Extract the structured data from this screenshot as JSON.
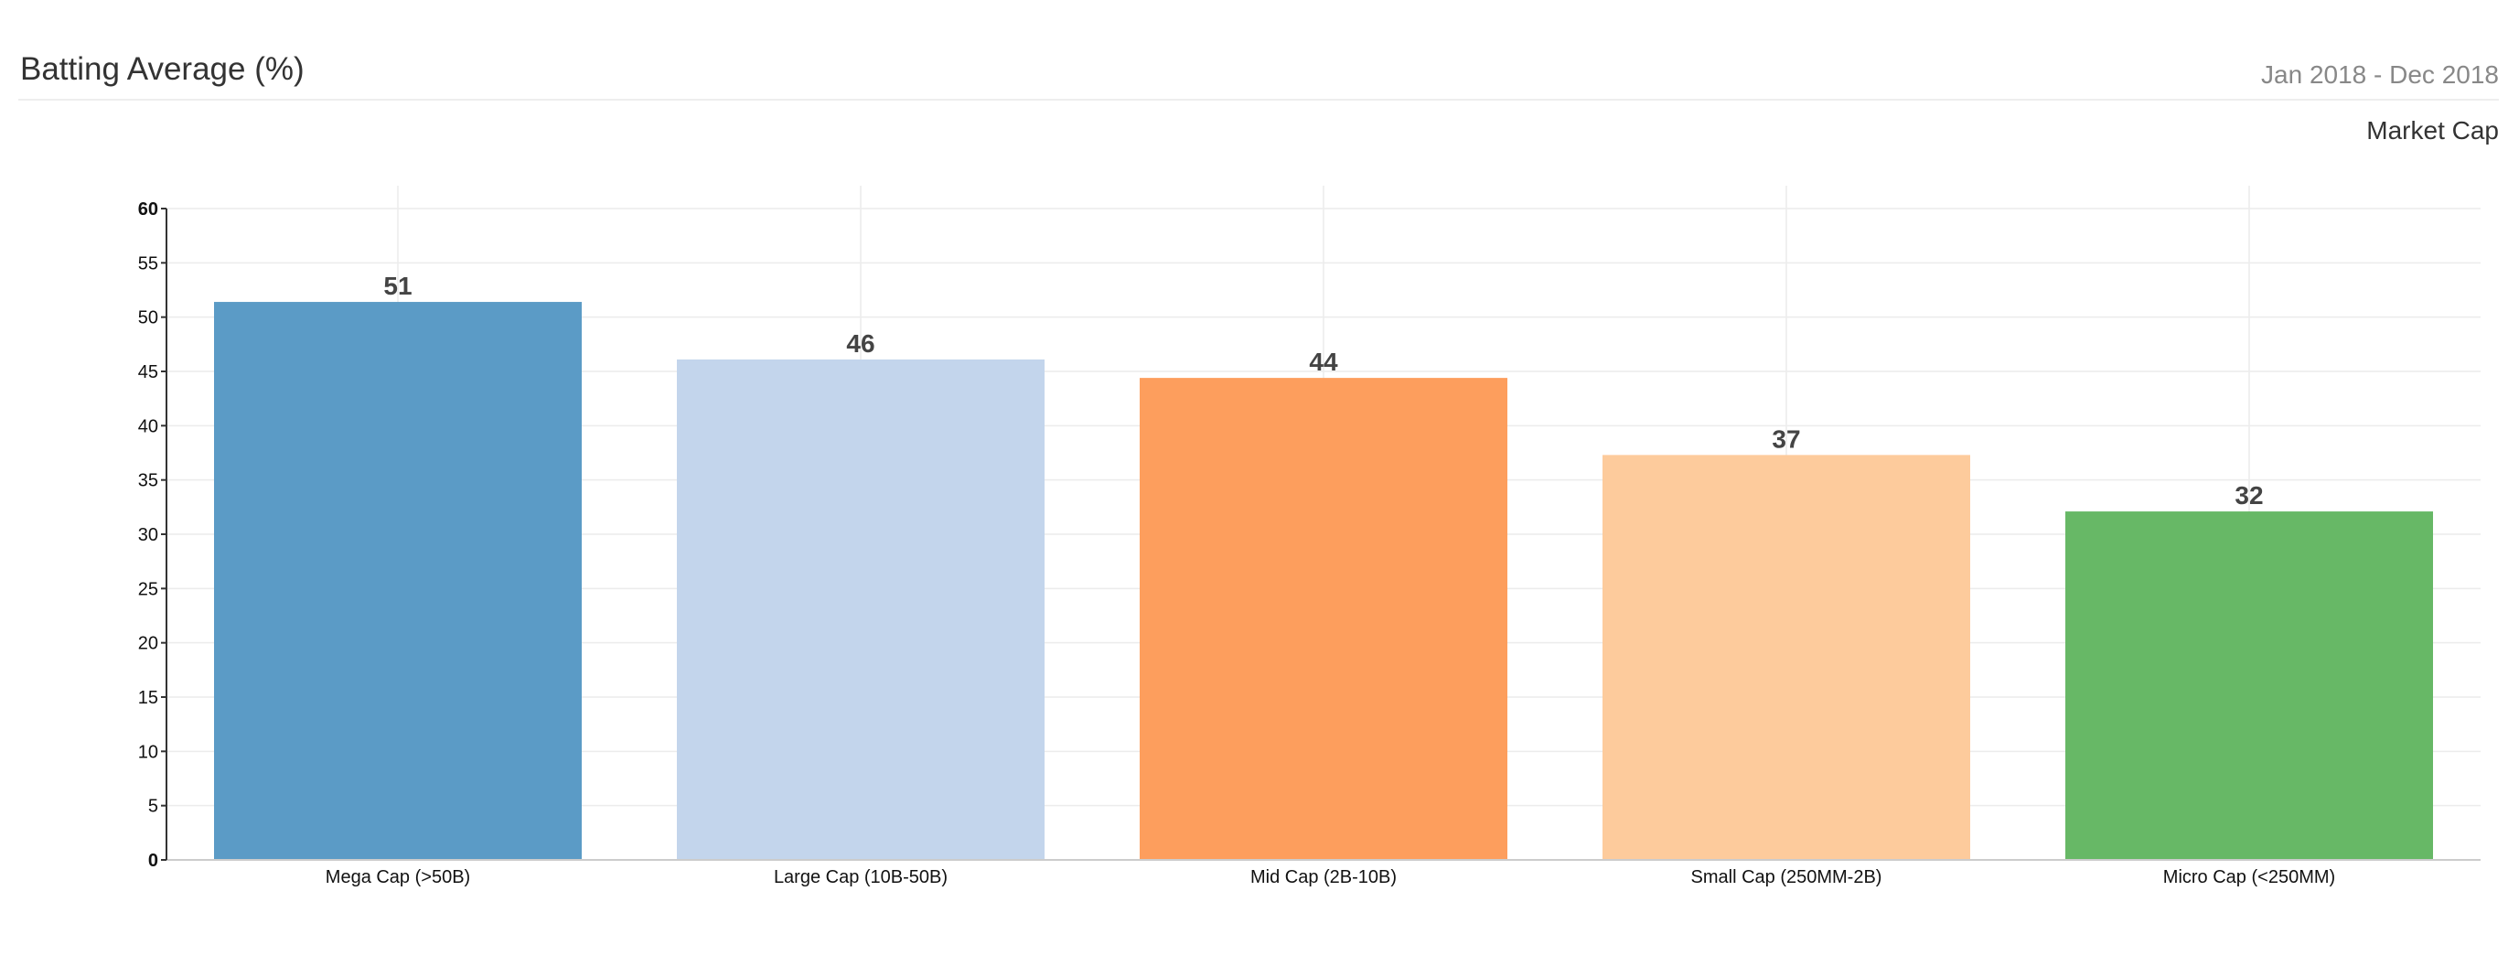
{
  "header": {
    "title": "Batting Average (%)",
    "date_range": "Jan 2018 - Dec 2018",
    "subtitle": "Market Cap"
  },
  "chart_data": {
    "type": "bar",
    "title": "Batting Average (%)",
    "subtitle": "Market Cap",
    "xlabel": "",
    "ylabel": "",
    "categories": [
      "Mega Cap (>50B)",
      "Large Cap (10B-50B)",
      "Mid Cap (2B-10B)",
      "Small Cap (250MM-2B)",
      "Micro Cap (<250MM)"
    ],
    "values": [
      51.4,
      46.1,
      44.4,
      37.3,
      32.1
    ],
    "data_labels": [
      "51",
      "46",
      "44",
      "37",
      "32"
    ],
    "colors": [
      "#5b9bc6",
      "#c3d5ec",
      "#fd9e5d",
      "#fdcb9c",
      "#67b866"
    ],
    "ylim": [
      0,
      60
    ],
    "yticks": [
      0,
      5,
      10,
      15,
      20,
      25,
      30,
      35,
      40,
      45,
      50,
      55,
      60
    ],
    "grid": true,
    "legend": "none"
  }
}
